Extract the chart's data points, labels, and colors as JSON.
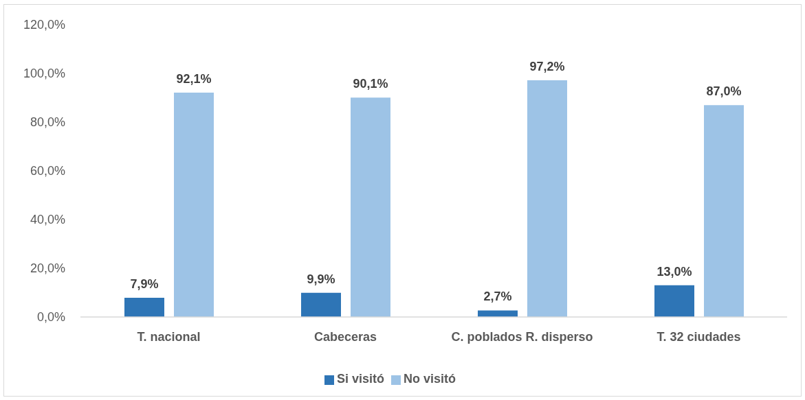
{
  "chart_data": {
    "type": "bar",
    "categories": [
      "T. nacional",
      "Cabeceras",
      "C. poblados R. disperso",
      "T. 32 ciudades"
    ],
    "series": [
      {
        "name": "Si visitó",
        "color": "#2e75b6",
        "values": [
          7.9,
          9.9,
          2.7,
          13.0
        ],
        "value_labels": [
          "7,9%",
          "9,9%",
          "2,7%",
          "13,0%"
        ]
      },
      {
        "name": "No visitó",
        "color": "#9dc3e6",
        "values": [
          92.1,
          90.1,
          97.2,
          87.0
        ],
        "value_labels": [
          "92,1%",
          "90,1%",
          "97,2%",
          "87,0%"
        ]
      }
    ],
    "ylim": [
      0,
      120
    ],
    "yticks": [
      {
        "value": 0,
        "label": "0,0%"
      },
      {
        "value": 20,
        "label": "20,0%"
      },
      {
        "value": 40,
        "label": "40,0%"
      },
      {
        "value": 60,
        "label": "60,0%"
      },
      {
        "value": 80,
        "label": "80,0%"
      },
      {
        "value": 100,
        "label": "100,0%"
      },
      {
        "value": 120,
        "label": "120,0%"
      }
    ],
    "grid": false,
    "legend": "bottom"
  }
}
